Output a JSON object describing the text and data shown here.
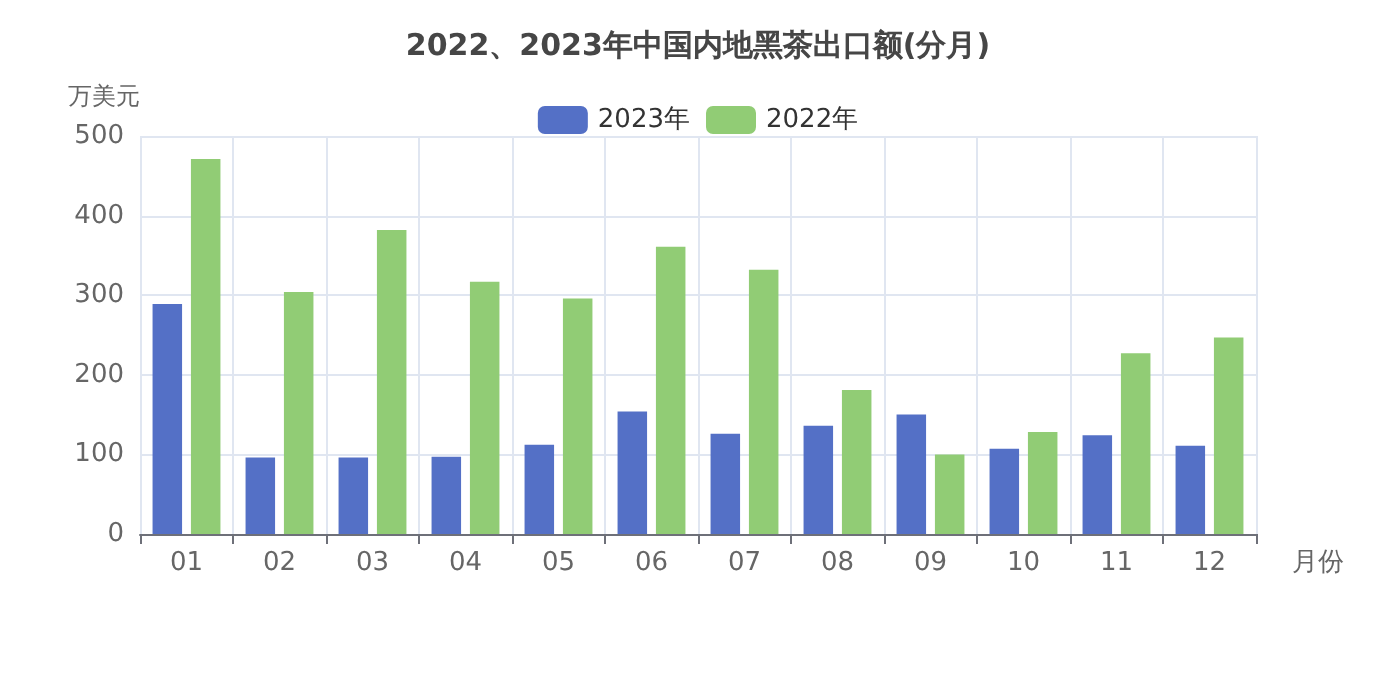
{
  "chart_data": {
    "type": "bar",
    "title": "2022、2023年中国内地黑茶出口额(分月)",
    "xlabel": "月份",
    "ylabel": "万美元",
    "categories": [
      "01",
      "02",
      "03",
      "04",
      "05",
      "06",
      "07",
      "08",
      "09",
      "10",
      "11",
      "12"
    ],
    "series": [
      {
        "name": "2023年",
        "color": "#5470c6",
        "values": [
          289,
          96,
          96,
          97,
          112,
          154,
          126,
          136,
          150,
          107,
          124,
          111
        ]
      },
      {
        "name": "2022年",
        "color": "#91cc75",
        "values": [
          471,
          304,
          382,
          317,
          296,
          361,
          332,
          181,
          100,
          128,
          227,
          247
        ]
      }
    ],
    "ylim": [
      0,
      500
    ],
    "yticks": [
      0,
      100,
      200,
      300,
      400,
      500
    ],
    "grid": true,
    "legend": "top"
  }
}
